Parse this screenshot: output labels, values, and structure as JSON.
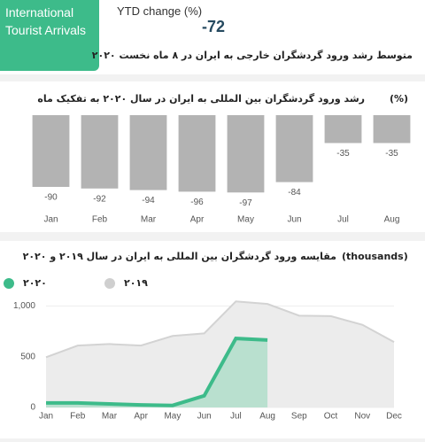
{
  "header": {
    "tile": "International Tourist Arrivals",
    "kpi_label": "YTD change (%)",
    "kpi_value": "-72",
    "subtitle": "متوسط رشد ورود گردشگران خارجی به ایران در ۸ ماه نخست ۲۰۲۰"
  },
  "chart_data": [
    {
      "type": "bar",
      "title": "رشد ورود گردشگران بین المللی به ایران در سال ۲۰۲۰ به تفکیک ماه",
      "unit": "(%)",
      "categories": [
        "Jan",
        "Feb",
        "Mar",
        "Apr",
        "May",
        "Jun",
        "Jul",
        "Aug"
      ],
      "values": [
        -90,
        -92,
        -94,
        -96,
        -97,
        -84,
        -35,
        -35
      ],
      "color": "#b3b3b3",
      "ylim": [
        -100,
        0
      ]
    },
    {
      "type": "line",
      "title": "مقایسه ورود گردشگران بین المللی به ایران در سال ۲۰۱۹ و ۲۰۲۰",
      "unit": "(thousands)",
      "categories": [
        "Jan",
        "Feb",
        "Mar",
        "Apr",
        "May",
        "Jun",
        "Jul",
        "Aug",
        "Sep",
        "Oct",
        "Nov",
        "Dec"
      ],
      "series": [
        {
          "name": "۲۰۲۰",
          "color": "#3dbb8a",
          "values": [
            45,
            45,
            35,
            25,
            20,
            115,
            680,
            665,
            null,
            null,
            null,
            null
          ]
        },
        {
          "name": "۲۰۱۹",
          "color": "#d3d3d3",
          "values": [
            495,
            610,
            625,
            610,
            705,
            730,
            1045,
            1020,
            905,
            900,
            815,
            645
          ]
        }
      ],
      "ylim": [
        0,
        1100
      ],
      "yticks": [
        0,
        500,
        {
          "value": 1000,
          "label": "1,000"
        }
      ]
    }
  ]
}
